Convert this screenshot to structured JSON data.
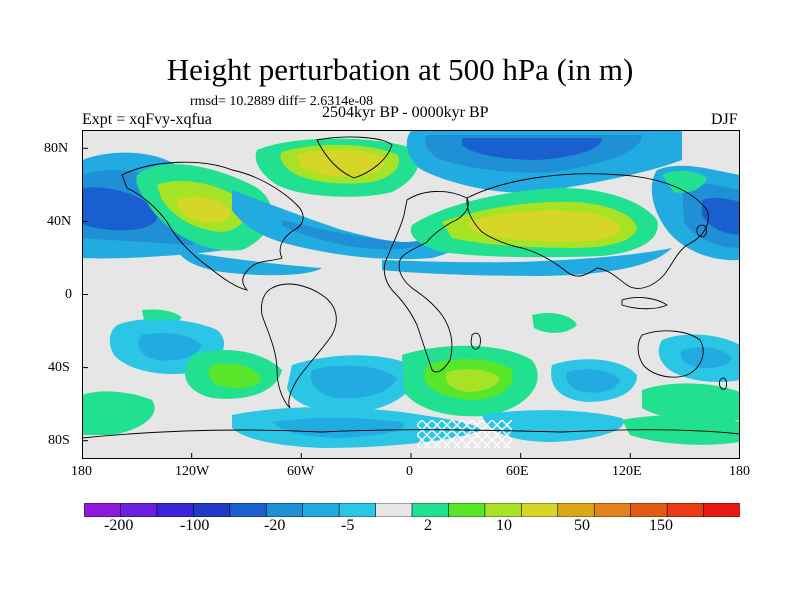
{
  "plot": {
    "title": "Height perturbation at 500 hPa (in m)",
    "stats": "rmsd= 10.2889 diff= 2.6314e-08",
    "experiment": "Expt = xqFvy-xqfua",
    "period": "2504kyr BP - 0000kyr BP",
    "season": "DJF"
  },
  "map_data": {
    "projection": "cylindrical equidistant",
    "lon_range": [
      -180,
      180
    ],
    "lat_range": [
      -90,
      90
    ],
    "lon_ticks": [
      "180",
      "120W",
      "60W",
      "0",
      "60E",
      "120E",
      "180"
    ],
    "lat_ticks": [
      "80N",
      "40N",
      "0",
      "40S",
      "80S"
    ],
    "features": [
      {
        "name": "North Atlantic / Greenland high",
        "value_band": "10 to 50"
      },
      {
        "name": "North America high",
        "value_band": "10 to 50"
      },
      {
        "name": "Eurasian high",
        "value_band": "10 to 50"
      },
      {
        "name": "North Pacific low",
        "value_band": "-20 to -5"
      },
      {
        "name": "Northeast Pacific high",
        "value_band": "2 to 10"
      },
      {
        "name": "Mid-latitude North Atlantic / Europe low",
        "value_band": "-20 to -5"
      },
      {
        "name": "Northeast Asia / Arctic low",
        "value_band": "-20 to -5"
      },
      {
        "name": "South Atlantic / Southern Ocean high",
        "value_band": "10 to 50"
      },
      {
        "name": "Southern Ocean lows",
        "value_band": "-5 to 2"
      }
    ]
  },
  "colorbar": {
    "colors": [
      "#8b1ad9",
      "#6b1fe0",
      "#3a23d8",
      "#1f39c8",
      "#1a5fd0",
      "#1f8fd6",
      "#21abe0",
      "#2bc6e6",
      "#e6e6e6",
      "#21e08f",
      "#57e62a",
      "#a6e225",
      "#d6d629",
      "#dca717",
      "#e3821a",
      "#e35a14",
      "#ea3a16",
      "#e51a10"
    ],
    "labels": [
      "-200",
      "-100",
      "-20",
      "-5",
      "2",
      "10",
      "50",
      "150"
    ]
  }
}
